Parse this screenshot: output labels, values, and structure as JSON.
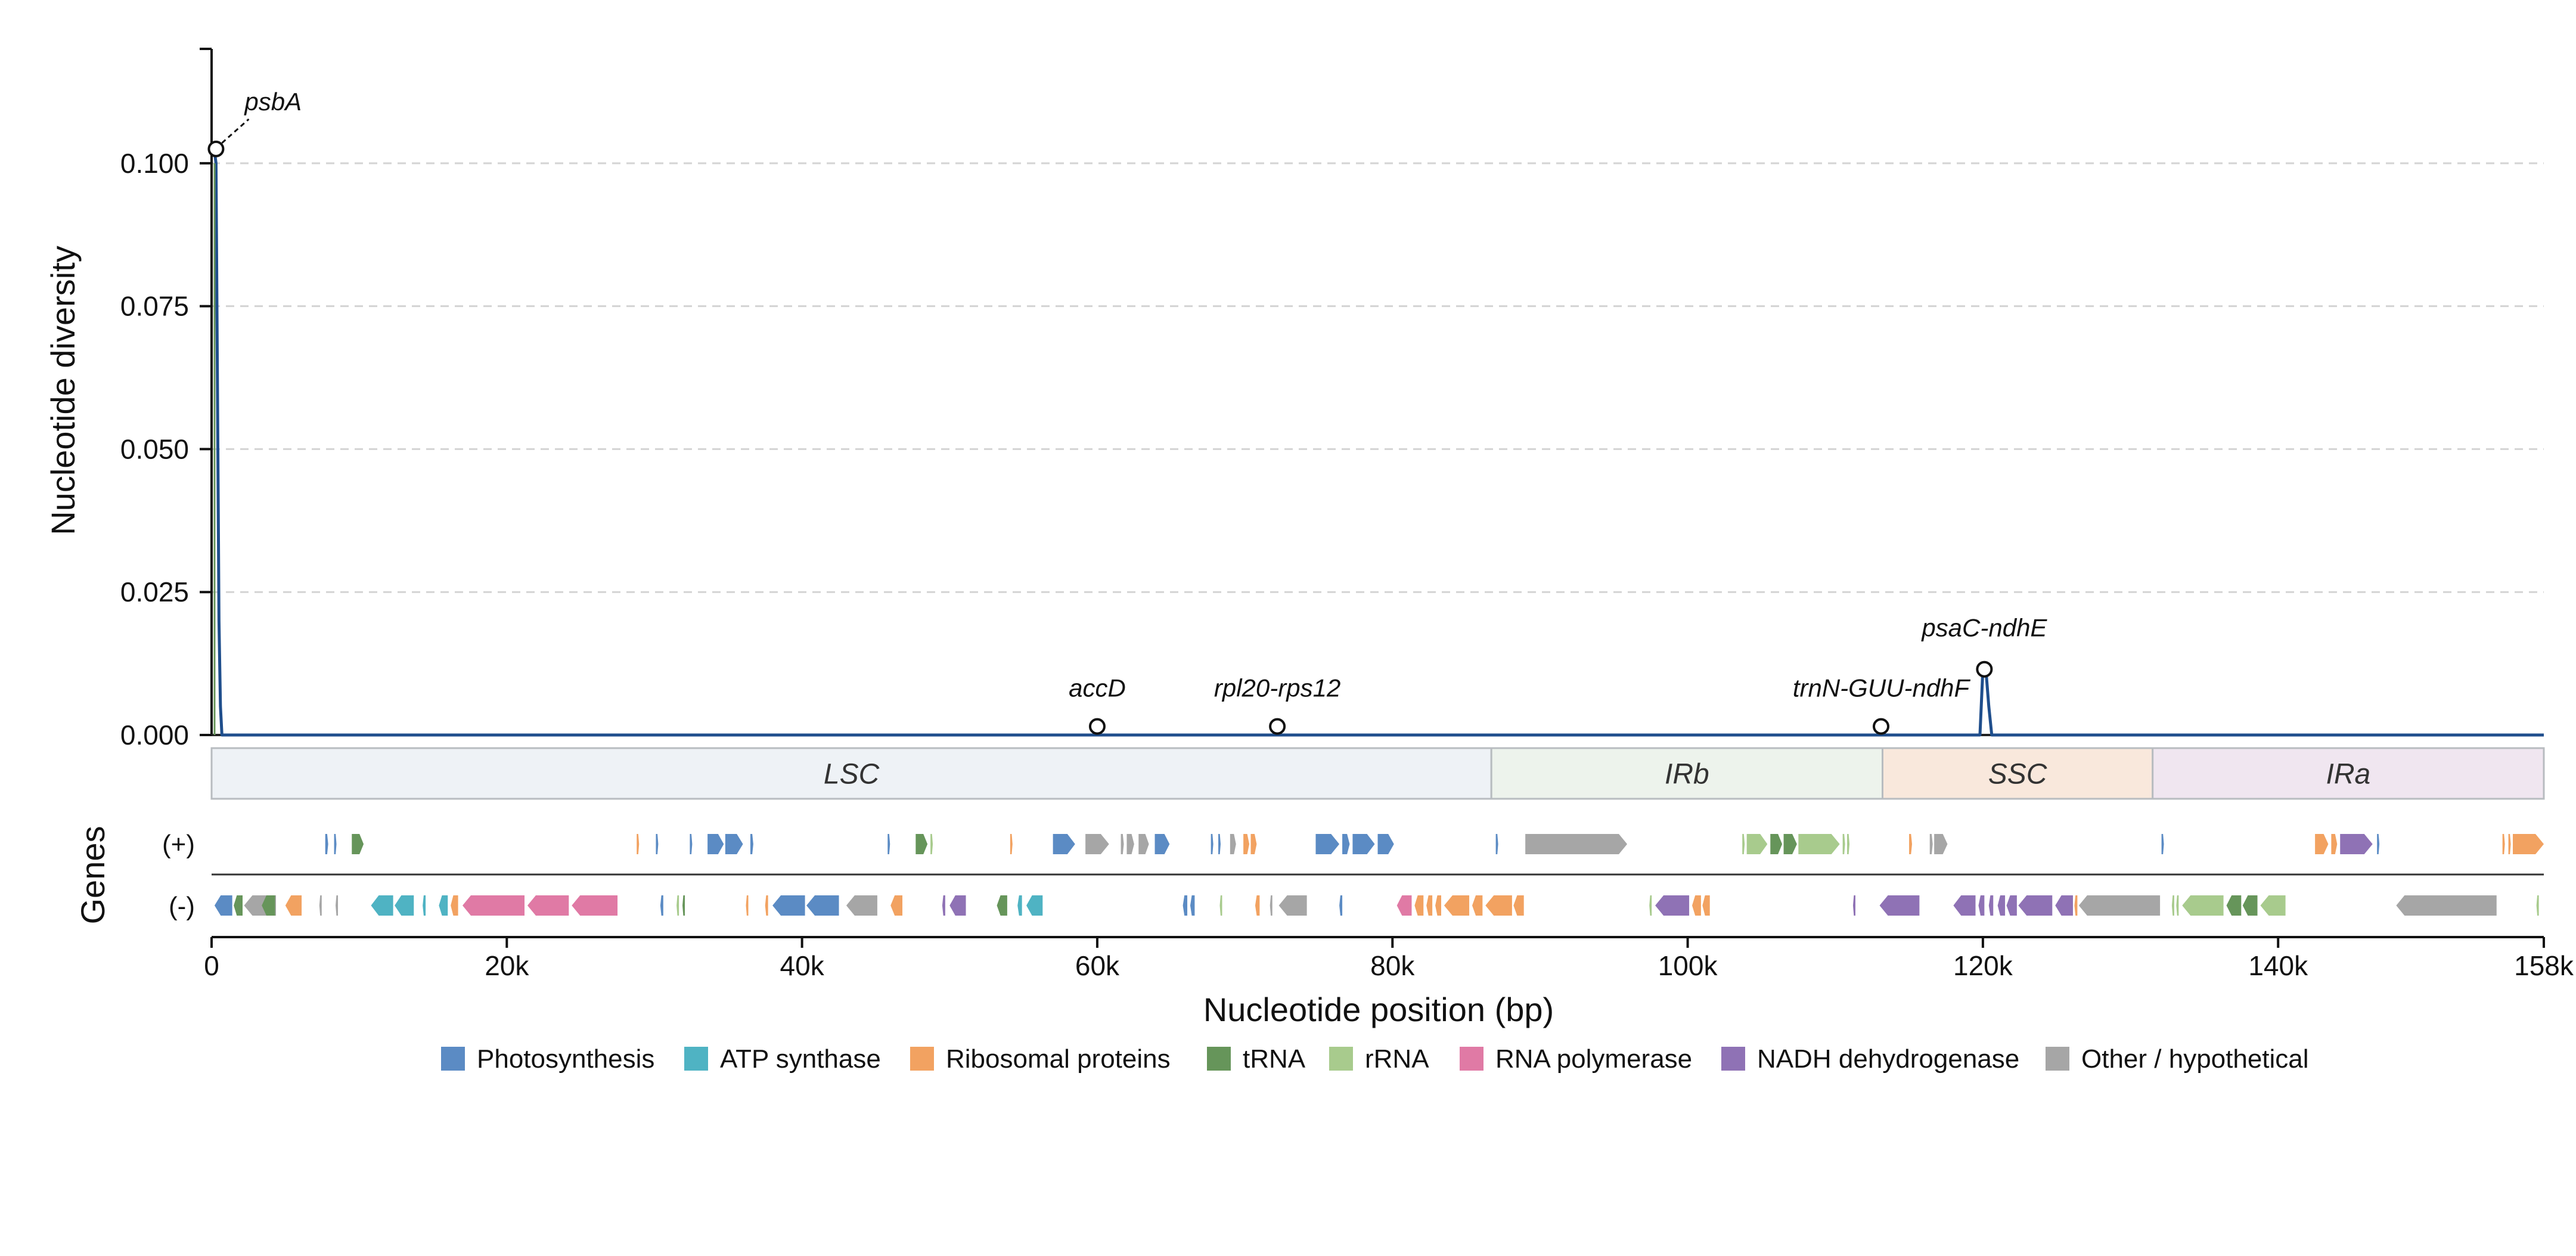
{
  "chart_data": {
    "type": "line",
    "ylabel": "Nucleotide diversity",
    "xlabel": "Nucleotide position (bp)",
    "genes_label": "Genes",
    "plus_strand_label": "(+)",
    "minus_strand_label": "(-)",
    "xlim": [
      0,
      158000
    ],
    "ylim": [
      0,
      0.12
    ],
    "x_ticks": [
      0,
      20000,
      40000,
      60000,
      80000,
      100000,
      120000,
      140000,
      158000
    ],
    "x_tick_labels": [
      "0",
      "20k",
      "40k",
      "60k",
      "80k",
      "100k",
      "120k",
      "140k",
      "158k"
    ],
    "y_ticks": [
      0,
      0.025,
      0.05,
      0.075,
      0.1
    ],
    "y_tick_labels": [
      "0.000",
      "0.025",
      "0.050",
      "0.075",
      "0.100"
    ],
    "grid": "horizontal dashed",
    "line_color": "#1f4e8c",
    "series": [
      {
        "x": [
          200,
          300,
          400,
          500,
          600,
          700,
          800,
          900,
          1000,
          60000,
          72000,
          113000,
          119800,
          120000,
          120200,
          120400,
          120600,
          158000
        ],
        "y": [
          0.102,
          0.1,
          0.06,
          0.02,
          0.005,
          0,
          0,
          0,
          0,
          0,
          0,
          0,
          0,
          0.0115,
          0.0115,
          0.005,
          0,
          0
        ]
      }
    ],
    "peaks": [
      {
        "label": "psbA",
        "x": 300,
        "y": 0.1025
      },
      {
        "label": "accD",
        "x": 60000,
        "y": 0.0015
      },
      {
        "label": "rpl20-rps12",
        "x": 72200,
        "y": 0.0015
      },
      {
        "label": "trnN-GUU-ndhF",
        "x": 113100,
        "y": 0.0015
      },
      {
        "label": "psaC-ndhE",
        "x": 120100,
        "y": 0.0115
      }
    ],
    "regions": [
      {
        "label": "LSC",
        "start": 0,
        "end": 86700,
        "color": "#eef2f6"
      },
      {
        "label": "IRb",
        "start": 86700,
        "end": 113200,
        "color": "#edf3ec"
      },
      {
        "label": "SSC",
        "start": 113200,
        "end": 131500,
        "color": "#f9e8dc"
      },
      {
        "label": "IRa",
        "start": 131500,
        "end": 158000,
        "color": "#f0e6f0"
      }
    ],
    "legend": [
      {
        "label": "Photosynthesis",
        "color": "#5b8bc4",
        "key": "ps"
      },
      {
        "label": "ATP synthase",
        "color": "#4fb3c3",
        "key": "atp"
      },
      {
        "label": "Ribosomal proteins",
        "color": "#f2a261",
        "key": "rib"
      },
      {
        "label": "tRNA",
        "color": "#66955a",
        "key": "trna"
      },
      {
        "label": "rRNA",
        "color": "#a8cb8d",
        "key": "rrna"
      },
      {
        "label": "RNA polymerase",
        "color": "#e07aa5",
        "key": "rpo"
      },
      {
        "label": "NADH dehydrogenase",
        "color": "#8f72b5",
        "key": "ndh"
      },
      {
        "label": "Other / hypothetical",
        "color": "#a6a6a6",
        "key": "oth"
      }
    ],
    "genes_plus": [
      {
        "start": 7700,
        "end": 7900,
        "cat": "ps"
      },
      {
        "start": 8300,
        "end": 8450,
        "cat": "ps"
      },
      {
        "start": 9500,
        "end": 10300,
        "cat": "trna"
      },
      {
        "start": 28800,
        "end": 28950,
        "cat": "rib"
      },
      {
        "start": 30100,
        "end": 30250,
        "cat": "ps"
      },
      {
        "start": 32400,
        "end": 32550,
        "cat": "ps"
      },
      {
        "start": 33600,
        "end": 34700,
        "cat": "ps"
      },
      {
        "start": 34800,
        "end": 36000,
        "cat": "ps"
      },
      {
        "start": 36500,
        "end": 36700,
        "cat": "ps"
      },
      {
        "start": 45800,
        "end": 45950,
        "cat": "ps"
      },
      {
        "start": 47700,
        "end": 48500,
        "cat": "trna"
      },
      {
        "start": 48700,
        "end": 48850,
        "cat": "rrna"
      },
      {
        "start": 54100,
        "end": 54250,
        "cat": "rib"
      },
      {
        "start": 57000,
        "end": 58500,
        "cat": "ps"
      },
      {
        "start": 59200,
        "end": 60800,
        "cat": "oth"
      },
      {
        "start": 61600,
        "end": 61800,
        "cat": "oth"
      },
      {
        "start": 62000,
        "end": 62500,
        "cat": "oth"
      },
      {
        "start": 62800,
        "end": 63500,
        "cat": "oth"
      },
      {
        "start": 63900,
        "end": 64900,
        "cat": "ps"
      },
      {
        "start": 67700,
        "end": 67850,
        "cat": "ps"
      },
      {
        "start": 68200,
        "end": 68350,
        "cat": "ps"
      },
      {
        "start": 69000,
        "end": 69400,
        "cat": "oth"
      },
      {
        "start": 69900,
        "end": 70300,
        "cat": "rib"
      },
      {
        "start": 70400,
        "end": 70800,
        "cat": "rib"
      },
      {
        "start": 74800,
        "end": 76400,
        "cat": "ps"
      },
      {
        "start": 76600,
        "end": 77100,
        "cat": "ps"
      },
      {
        "start": 77300,
        "end": 78800,
        "cat": "ps"
      },
      {
        "start": 79000,
        "end": 80100,
        "cat": "ps"
      },
      {
        "start": 87000,
        "end": 87150,
        "cat": "ps"
      },
      {
        "start": 89000,
        "end": 95900,
        "cat": "oth"
      },
      {
        "start": 103700,
        "end": 103850,
        "cat": "rrna"
      },
      {
        "start": 104000,
        "end": 105400,
        "cat": "rrna"
      },
      {
        "start": 105600,
        "end": 106400,
        "cat": "trna"
      },
      {
        "start": 106500,
        "end": 107400,
        "cat": "trna"
      },
      {
        "start": 107500,
        "end": 110300,
        "cat": "rrna"
      },
      {
        "start": 110500,
        "end": 110650,
        "cat": "rrna"
      },
      {
        "start": 110800,
        "end": 110950,
        "cat": "rrna"
      },
      {
        "start": 115000,
        "end": 115200,
        "cat": "rib"
      },
      {
        "start": 116400,
        "end": 116600,
        "cat": "oth"
      },
      {
        "start": 116700,
        "end": 117600,
        "cat": "oth"
      },
      {
        "start": 132100,
        "end": 132250,
        "cat": "ps"
      },
      {
        "start": 142500,
        "end": 143400,
        "cat": "rib"
      },
      {
        "start": 143600,
        "end": 144000,
        "cat": "rib"
      },
      {
        "start": 144200,
        "end": 146400,
        "cat": "ndh"
      },
      {
        "start": 146700,
        "end": 146850,
        "cat": "ps"
      },
      {
        "start": 155200,
        "end": 155350,
        "cat": "rib"
      },
      {
        "start": 155600,
        "end": 155750,
        "cat": "rib"
      },
      {
        "start": 155900,
        "end": 158000,
        "cat": "rib"
      }
    ],
    "genes_minus": [
      {
        "start": 200,
        "end": 1400,
        "cat": "ps"
      },
      {
        "start": 1500,
        "end": 2100,
        "cat": "trna"
      },
      {
        "start": 2200,
        "end": 4100,
        "cat": "oth"
      },
      {
        "start": 4200,
        "end": 4200,
        "cat": "oth"
      },
      {
        "start": 3400,
        "end": 4300,
        "cat": "trna"
      },
      {
        "start": 5000,
        "end": 6100,
        "cat": "rib"
      },
      {
        "start": 7300,
        "end": 7450,
        "cat": "oth"
      },
      {
        "start": 8400,
        "end": 8550,
        "cat": "oth"
      },
      {
        "start": 10800,
        "end": 12300,
        "cat": "atp"
      },
      {
        "start": 12400,
        "end": 13700,
        "cat": "atp"
      },
      {
        "start": 14300,
        "end": 14500,
        "cat": "atp"
      },
      {
        "start": 15400,
        "end": 16000,
        "cat": "atp"
      },
      {
        "start": 16200,
        "end": 16700,
        "cat": "rib"
      },
      {
        "start": 17000,
        "end": 21200,
        "cat": "rpo"
      },
      {
        "start": 21400,
        "end": 24200,
        "cat": "rpo"
      },
      {
        "start": 24400,
        "end": 27500,
        "cat": "rpo"
      },
      {
        "start": 30400,
        "end": 30600,
        "cat": "ps"
      },
      {
        "start": 31500,
        "end": 31650,
        "cat": "rrna"
      },
      {
        "start": 31900,
        "end": 32050,
        "cat": "trna"
      },
      {
        "start": 36200,
        "end": 36350,
        "cat": "rib"
      },
      {
        "start": 37500,
        "end": 37700,
        "cat": "rib"
      },
      {
        "start": 38000,
        "end": 40200,
        "cat": "ps"
      },
      {
        "start": 40300,
        "end": 42500,
        "cat": "ps"
      },
      {
        "start": 43000,
        "end": 45100,
        "cat": "oth"
      },
      {
        "start": 46000,
        "end": 46800,
        "cat": "rib"
      },
      {
        "start": 49500,
        "end": 49700,
        "cat": "ndh"
      },
      {
        "start": 50000,
        "end": 51100,
        "cat": "ndh"
      },
      {
        "start": 53200,
        "end": 53900,
        "cat": "trna"
      },
      {
        "start": 54600,
        "end": 54900,
        "cat": "atp"
      },
      {
        "start": 55200,
        "end": 56300,
        "cat": "atp"
      },
      {
        "start": 65800,
        "end": 66100,
        "cat": "ps"
      },
      {
        "start": 66300,
        "end": 66600,
        "cat": "ps"
      },
      {
        "start": 68300,
        "end": 68450,
        "cat": "rrna"
      },
      {
        "start": 70700,
        "end": 71000,
        "cat": "rib"
      },
      {
        "start": 71700,
        "end": 71850,
        "cat": "oth"
      },
      {
        "start": 72300,
        "end": 74200,
        "cat": "oth"
      },
      {
        "start": 76400,
        "end": 76600,
        "cat": "ps"
      },
      {
        "start": 80300,
        "end": 81300,
        "cat": "rpo"
      },
      {
        "start": 81500,
        "end": 82100,
        "cat": "rib"
      },
      {
        "start": 82300,
        "end": 82700,
        "cat": "rib"
      },
      {
        "start": 82900,
        "end": 83300,
        "cat": "rib"
      },
      {
        "start": 83500,
        "end": 85200,
        "cat": "rib"
      },
      {
        "start": 85400,
        "end": 86100,
        "cat": "rib"
      },
      {
        "start": 86300,
        "end": 88100,
        "cat": "rib"
      },
      {
        "start": 88200,
        "end": 88900,
        "cat": "rib"
      },
      {
        "start": 97400,
        "end": 97550,
        "cat": "rrna"
      },
      {
        "start": 97800,
        "end": 100100,
        "cat": "ndh"
      },
      {
        "start": 100300,
        "end": 100900,
        "cat": "rib"
      },
      {
        "start": 101000,
        "end": 101500,
        "cat": "rib"
      },
      {
        "start": 111200,
        "end": 111350,
        "cat": "ndh"
      },
      {
        "start": 113000,
        "end": 115700,
        "cat": "ndh"
      },
      {
        "start": 118000,
        "end": 119500,
        "cat": "ndh"
      },
      {
        "start": 119700,
        "end": 120100,
        "cat": "ndh"
      },
      {
        "start": 120400,
        "end": 120700,
        "cat": "ndh"
      },
      {
        "start": 121000,
        "end": 121500,
        "cat": "ndh"
      },
      {
        "start": 121600,
        "end": 122300,
        "cat": "ndh"
      },
      {
        "start": 122400,
        "end": 124700,
        "cat": "ndh"
      },
      {
        "start": 124900,
        "end": 126100,
        "cat": "ndh"
      },
      {
        "start": 126200,
        "end": 126400,
        "cat": "rib"
      },
      {
        "start": 126500,
        "end": 132000,
        "cat": "oth"
      },
      {
        "start": 132800,
        "end": 132950,
        "cat": "rrna"
      },
      {
        "start": 133100,
        "end": 133250,
        "cat": "rrna"
      },
      {
        "start": 133500,
        "end": 136300,
        "cat": "rrna"
      },
      {
        "start": 136500,
        "end": 137500,
        "cat": "trna"
      },
      {
        "start": 137600,
        "end": 138600,
        "cat": "trna"
      },
      {
        "start": 138800,
        "end": 140500,
        "cat": "rrna"
      },
      {
        "start": 148000,
        "end": 154800,
        "cat": "oth"
      },
      {
        "start": 157500,
        "end": 157650,
        "cat": "rrna"
      }
    ]
  }
}
